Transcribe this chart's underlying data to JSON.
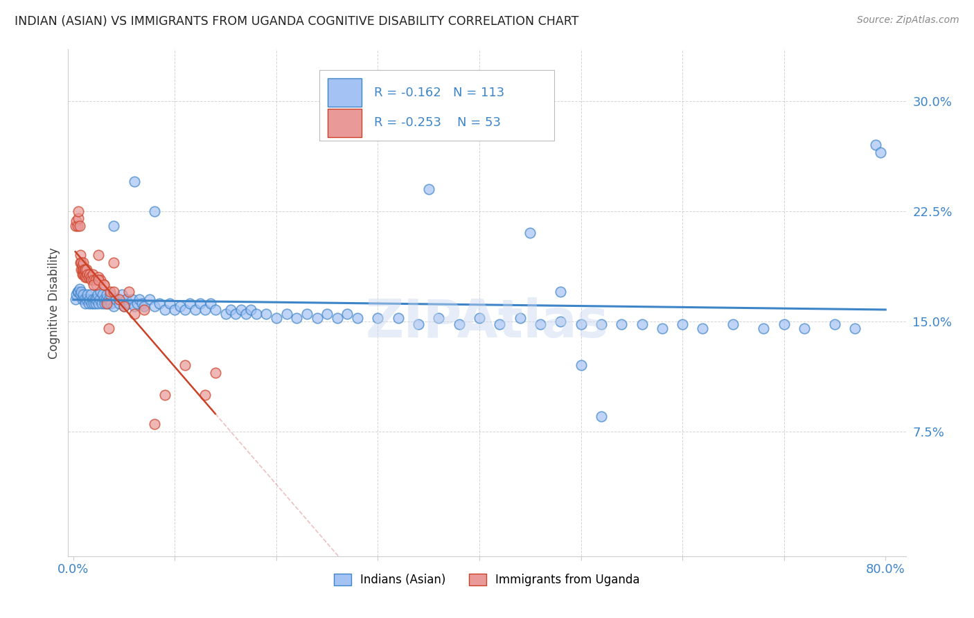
{
  "title": "INDIAN (ASIAN) VS IMMIGRANTS FROM UGANDA COGNITIVE DISABILITY CORRELATION CHART",
  "source": "Source: ZipAtlas.com",
  "ylabel": "Cognitive Disability",
  "y_ticks": [
    0.075,
    0.15,
    0.225,
    0.3
  ],
  "y_tick_labels": [
    "7.5%",
    "15.0%",
    "22.5%",
    "30.0%"
  ],
  "x_ticks": [
    0.0,
    0.1,
    0.2,
    0.3,
    0.4,
    0.5,
    0.6,
    0.7,
    0.8
  ],
  "x_tick_labels": [
    "0.0%",
    "",
    "",
    "",
    "",
    "",
    "",
    "",
    "80.0%"
  ],
  "x_lim": [
    -0.005,
    0.82
  ],
  "y_lim": [
    -0.01,
    0.335
  ],
  "blue_color": "#a4c2f4",
  "pink_color": "#ea9999",
  "blue_line_color": "#3d85c8",
  "pink_line_color": "#cc4125",
  "pink_dash_color": "#dd8080",
  "legend_R_blue": "-0.162",
  "legend_N_blue": "113",
  "legend_R_pink": "-0.253",
  "legend_N_pink": "53",
  "watermark": "ZIPAtlas",
  "legend_label_blue": "Indians (Asian)",
  "legend_label_pink": "Immigrants from Uganda",
  "blue_x": [
    0.002,
    0.003,
    0.004,
    0.005,
    0.006,
    0.007,
    0.008,
    0.009,
    0.01,
    0.011,
    0.012,
    0.013,
    0.014,
    0.015,
    0.016,
    0.017,
    0.018,
    0.019,
    0.02,
    0.021,
    0.022,
    0.023,
    0.024,
    0.025,
    0.026,
    0.027,
    0.028,
    0.029,
    0.03,
    0.031,
    0.032,
    0.033,
    0.034,
    0.035,
    0.036,
    0.037,
    0.04,
    0.042,
    0.045,
    0.048,
    0.05,
    0.052,
    0.055,
    0.058,
    0.06,
    0.063,
    0.065,
    0.068,
    0.07,
    0.075,
    0.08,
    0.085,
    0.09,
    0.095,
    0.1,
    0.105,
    0.11,
    0.115,
    0.12,
    0.125,
    0.13,
    0.135,
    0.14,
    0.15,
    0.155,
    0.16,
    0.165,
    0.17,
    0.175,
    0.18,
    0.19,
    0.2,
    0.21,
    0.22,
    0.23,
    0.24,
    0.25,
    0.26,
    0.27,
    0.28,
    0.3,
    0.32,
    0.34,
    0.36,
    0.38,
    0.4,
    0.42,
    0.44,
    0.46,
    0.48,
    0.5,
    0.52,
    0.54,
    0.56,
    0.58,
    0.6,
    0.62,
    0.65,
    0.68,
    0.7,
    0.72,
    0.75,
    0.77,
    0.79,
    0.795,
    0.04,
    0.06,
    0.08,
    0.35,
    0.45,
    0.48,
    0.5,
    0.52
  ],
  "blue_y": [
    0.165,
    0.168,
    0.17,
    0.17,
    0.172,
    0.168,
    0.17,
    0.165,
    0.168,
    0.165,
    0.162,
    0.165,
    0.168,
    0.162,
    0.165,
    0.168,
    0.162,
    0.165,
    0.162,
    0.165,
    0.162,
    0.165,
    0.168,
    0.162,
    0.165,
    0.17,
    0.162,
    0.168,
    0.165,
    0.162,
    0.165,
    0.168,
    0.162,
    0.165,
    0.168,
    0.162,
    0.16,
    0.165,
    0.162,
    0.168,
    0.16,
    0.165,
    0.162,
    0.165,
    0.16,
    0.162,
    0.165,
    0.162,
    0.16,
    0.165,
    0.16,
    0.162,
    0.158,
    0.162,
    0.158,
    0.16,
    0.158,
    0.162,
    0.158,
    0.162,
    0.158,
    0.162,
    0.158,
    0.155,
    0.158,
    0.155,
    0.158,
    0.155,
    0.158,
    0.155,
    0.155,
    0.152,
    0.155,
    0.152,
    0.155,
    0.152,
    0.155,
    0.152,
    0.155,
    0.152,
    0.152,
    0.152,
    0.148,
    0.152,
    0.148,
    0.152,
    0.148,
    0.152,
    0.148,
    0.15,
    0.148,
    0.148,
    0.148,
    0.148,
    0.145,
    0.148,
    0.145,
    0.148,
    0.145,
    0.148,
    0.145,
    0.148,
    0.145,
    0.27,
    0.265,
    0.215,
    0.245,
    0.225,
    0.24,
    0.21,
    0.17,
    0.12,
    0.085
  ],
  "pink_x": [
    0.002,
    0.003,
    0.004,
    0.005,
    0.005,
    0.006,
    0.007,
    0.007,
    0.008,
    0.008,
    0.009,
    0.009,
    0.009,
    0.01,
    0.01,
    0.01,
    0.011,
    0.011,
    0.012,
    0.012,
    0.013,
    0.013,
    0.014,
    0.015,
    0.016,
    0.017,
    0.018,
    0.019,
    0.02,
    0.022,
    0.023,
    0.025,
    0.027,
    0.03,
    0.033,
    0.036,
    0.04,
    0.045,
    0.05,
    0.055,
    0.06,
    0.07,
    0.08,
    0.09,
    0.11,
    0.13,
    0.14,
    0.02,
    0.025,
    0.025,
    0.03,
    0.035,
    0.04
  ],
  "pink_y": [
    0.215,
    0.218,
    0.215,
    0.22,
    0.225,
    0.215,
    0.19,
    0.195,
    0.185,
    0.19,
    0.182,
    0.185,
    0.188,
    0.182,
    0.185,
    0.19,
    0.182,
    0.185,
    0.18,
    0.185,
    0.18,
    0.185,
    0.182,
    0.18,
    0.182,
    0.18,
    0.178,
    0.182,
    0.178,
    0.178,
    0.175,
    0.18,
    0.178,
    0.175,
    0.162,
    0.17,
    0.17,
    0.165,
    0.16,
    0.17,
    0.155,
    0.158,
    0.08,
    0.1,
    0.12,
    0.1,
    0.115,
    0.175,
    0.178,
    0.195,
    0.175,
    0.145,
    0.19
  ]
}
